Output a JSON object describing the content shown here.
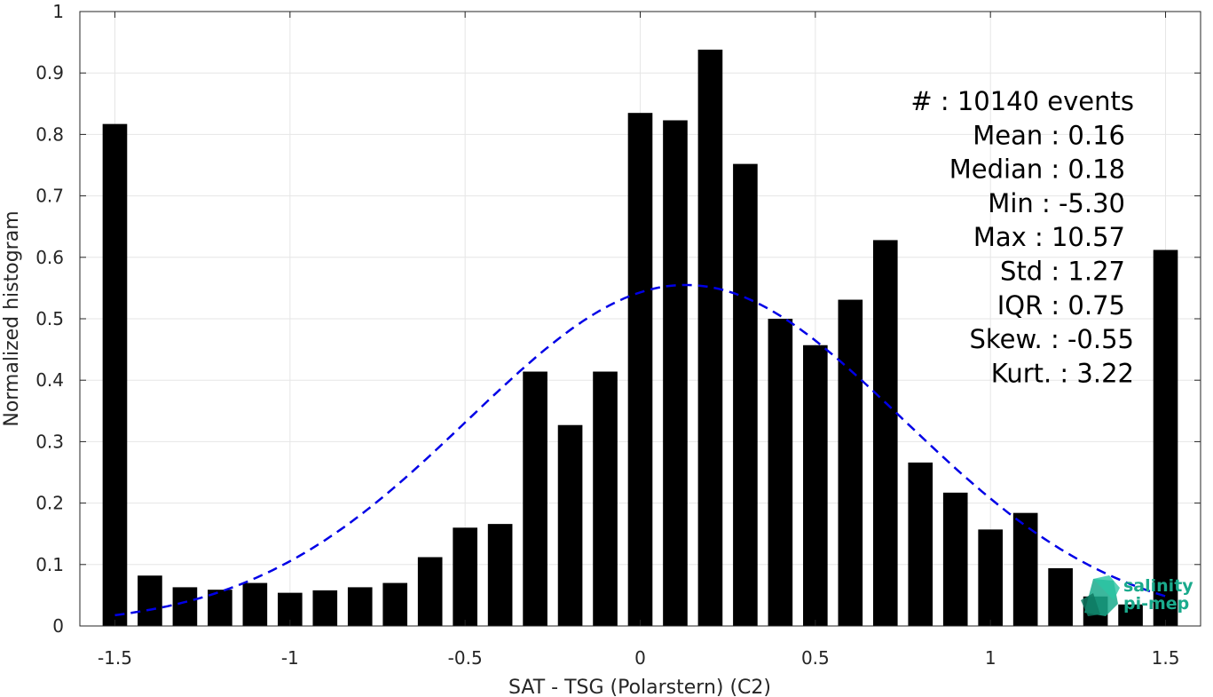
{
  "chart_data": {
    "type": "bar",
    "title": "",
    "xlabel": "SAT - TSG (Polarstern) (C2)",
    "ylabel": "Normalized histogram",
    "xlim": [
      -1.6,
      1.6
    ],
    "ylim": [
      0,
      1
    ],
    "x_ticks": [
      -1.5,
      -1,
      -0.5,
      0,
      0.5,
      1,
      1.5
    ],
    "x_tick_labels": [
      "-1.5",
      "-1",
      "-0.5",
      "0",
      "0.5",
      "1",
      "1.5"
    ],
    "y_ticks": [
      0,
      0.1,
      0.2,
      0.3,
      0.4,
      0.5,
      0.6,
      0.7,
      0.8,
      0.9,
      1
    ],
    "y_tick_labels": [
      "0",
      "0.1",
      "0.2",
      "0.3",
      "0.4",
      "0.5",
      "0.6",
      "0.7",
      "0.8",
      "0.9",
      "1"
    ],
    "grid": true,
    "bar_color": "#000000",
    "bars": {
      "x": [
        -1.5,
        -1.4,
        -1.3,
        -1.2,
        -1.1,
        -1.0,
        -0.9,
        -0.8,
        -0.7,
        -0.6,
        -0.5,
        -0.4,
        -0.3,
        -0.2,
        -0.1,
        0.0,
        0.1,
        0.2,
        0.3,
        0.4,
        0.5,
        0.6,
        0.7,
        0.8,
        0.9,
        1.0,
        1.1,
        1.2,
        1.3,
        1.4,
        1.5
      ],
      "values": [
        0.817,
        0.082,
        0.063,
        0.059,
        0.07,
        0.054,
        0.058,
        0.063,
        0.07,
        0.112,
        0.16,
        0.166,
        0.414,
        0.327,
        0.414,
        0.835,
        0.823,
        0.938,
        0.752,
        0.5,
        0.457,
        0.531,
        0.628,
        0.266,
        0.217,
        0.157,
        0.184,
        0.094,
        0.048,
        0.035,
        0.612
      ],
      "width": 0.07
    },
    "fit_curve": {
      "type": "normal",
      "line_style": "dashed",
      "color": "#0000e6",
      "mean": 0.13,
      "sigma": 0.62,
      "peak": 0.555,
      "x_range": [
        -1.5,
        1.5
      ]
    },
    "stats": [
      {
        "key": "#  ",
        "value": ": 10140 events"
      },
      {
        "key": "Mean",
        "value": ": 0.16"
      },
      {
        "key": "Median",
        "value": ": 0.18"
      },
      {
        "key": "Min",
        "value": ": -5.30"
      },
      {
        "key": "Max",
        "value": ": 10.57"
      },
      {
        "key": "Std",
        "value": ": 1.27"
      },
      {
        "key": "IQR",
        "value": ": 0.75"
      },
      {
        "key": "Skew.",
        "value": ": -0.55"
      },
      {
        "key": "Kurt.",
        "value": ": 3.22"
      }
    ]
  },
  "logo": {
    "line1": "salinity",
    "line2": "pi-mep",
    "color": "#1aaa8c"
  }
}
